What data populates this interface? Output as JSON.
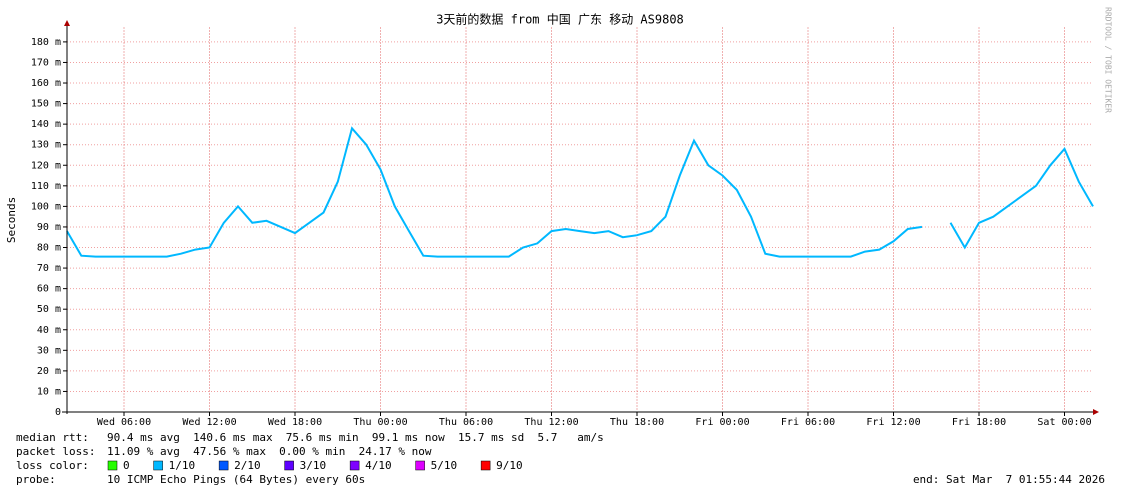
{
  "chart_data": {
    "type": "line",
    "title": "3天前的数据 from 中国 广东 移动 AS9808",
    "y_label": "Seconds",
    "watermark": "RRDTOOL / TOBI OETIKER",
    "x": [
      0,
      1,
      2,
      3,
      4,
      5,
      6,
      7,
      8,
      9,
      10,
      11,
      12,
      13,
      14,
      15,
      16,
      17,
      18,
      19,
      20,
      21,
      22,
      23,
      24,
      25,
      26,
      27,
      28,
      29,
      30,
      31,
      32,
      33,
      34,
      35,
      36,
      37,
      38,
      39,
      40,
      41,
      42,
      43,
      44,
      45,
      46,
      47,
      48,
      49,
      50,
      51,
      52,
      53,
      54,
      55,
      56,
      57,
      58,
      59,
      60,
      61,
      62,
      63,
      64,
      65,
      66,
      67,
      68,
      69,
      70,
      71,
      72
    ],
    "series": [
      {
        "color": "#00b8ff",
        "values": [
          0.088,
          0.076,
          0.0756,
          0.0756,
          0.0756,
          0.0756,
          0.0756,
          0.0756,
          0.077,
          0.079,
          0.08,
          0.092,
          0.1,
          0.092,
          0.093,
          0.09,
          0.087,
          0.092,
          0.097,
          0.112,
          0.138,
          0.13,
          0.118,
          0.1,
          0.088,
          0.076,
          0.0756,
          0.0756,
          0.0756,
          0.0756,
          0.0756,
          0.0756,
          0.08,
          0.082,
          0.088,
          0.089,
          0.088,
          0.087,
          0.088,
          0.085,
          0.086,
          0.088,
          0.095,
          0.115,
          0.132,
          0.12,
          0.115,
          0.108,
          0.095,
          0.077,
          0.0756,
          0.0756,
          0.0756,
          0.0756,
          0.0756,
          0.0756,
          0.078,
          0.079,
          0.083,
          0.089,
          0.09,
          null,
          0.092,
          0.08,
          0.092,
          0.095,
          0.1,
          0.105,
          0.11,
          0.12,
          0.128,
          0.112,
          0.1
        ]
      }
    ],
    "xlim": [
      0,
      72
    ],
    "xticks": [
      {
        "value": 4,
        "label": "Wed 06:00"
      },
      {
        "value": 10,
        "label": "Wed 12:00"
      },
      {
        "value": 16,
        "label": "Wed 18:00"
      },
      {
        "value": 22,
        "label": "Thu 00:00"
      },
      {
        "value": 28,
        "label": "Thu 06:00"
      },
      {
        "value": 34,
        "label": "Thu 12:00"
      },
      {
        "value": 40,
        "label": "Thu 18:00"
      },
      {
        "value": 46,
        "label": "Fri 00:00"
      },
      {
        "value": 52,
        "label": "Fri 06:00"
      },
      {
        "value": 58,
        "label": "Fri 12:00"
      },
      {
        "value": 64,
        "label": "Fri 18:00"
      },
      {
        "value": 70,
        "label": "Sat 00:00"
      }
    ],
    "ylim": [
      0,
      0.187
    ],
    "yticks": [
      0,
      {
        "value": 0.01,
        "label": "10 m"
      },
      {
        "value": 0.02,
        "label": "20 m"
      },
      {
        "value": 0.03,
        "label": "30 m"
      },
      {
        "value": 0.04,
        "label": "40 m"
      },
      {
        "value": 0.05,
        "label": "50 m"
      },
      {
        "value": 0.06,
        "label": "60 m"
      },
      {
        "value": 0.07,
        "label": "70 m"
      },
      {
        "value": 0.08,
        "label": "80 m"
      },
      {
        "value": 0.09,
        "label": "90 m"
      },
      {
        "value": 0.1,
        "label": "100 m"
      },
      {
        "value": 0.11,
        "label": "110 m"
      },
      {
        "value": 0.12,
        "label": "120 m"
      },
      {
        "value": 0.13,
        "label": "130 m"
      },
      {
        "value": 0.14,
        "label": "140 m"
      },
      {
        "value": 0.15,
        "label": "150 m"
      },
      {
        "value": 0.16,
        "label": "160 m"
      },
      {
        "value": 0.17,
        "label": "170 m"
      },
      {
        "value": 0.18,
        "label": "180 m"
      }
    ],
    "grid": true
  },
  "stats": {
    "median_rtt": {
      "label": "median rtt:",
      "text": "90.4 ms avg  140.6 ms max  75.6 ms min  99.1 ms now  15.7 ms sd  5.7   am/s"
    },
    "packet_loss": {
      "label": "packet loss:",
      "text": "11.09 % avg  47.56 % max  0.00 % min  24.17 % now"
    },
    "loss_color": {
      "label": "loss color:",
      "entries": [
        {
          "name": "0",
          "color": "#26ff00"
        },
        {
          "name": "1/10",
          "color": "#00b8ff"
        },
        {
          "name": "2/10",
          "color": "#0059ff"
        },
        {
          "name": "3/10",
          "color": "#5e00ff"
        },
        {
          "name": "4/10",
          "color": "#7e00ff"
        },
        {
          "name": "5/10",
          "color": "#dd00ff"
        },
        {
          "name": "9/10",
          "color": "#ff0000"
        }
      ]
    },
    "probe": {
      "label": "probe:",
      "text": "10 ICMP Echo Pings (64 Bytes) every 60s"
    },
    "end": "end: Sat Mar  7 01:55:44 2026"
  }
}
